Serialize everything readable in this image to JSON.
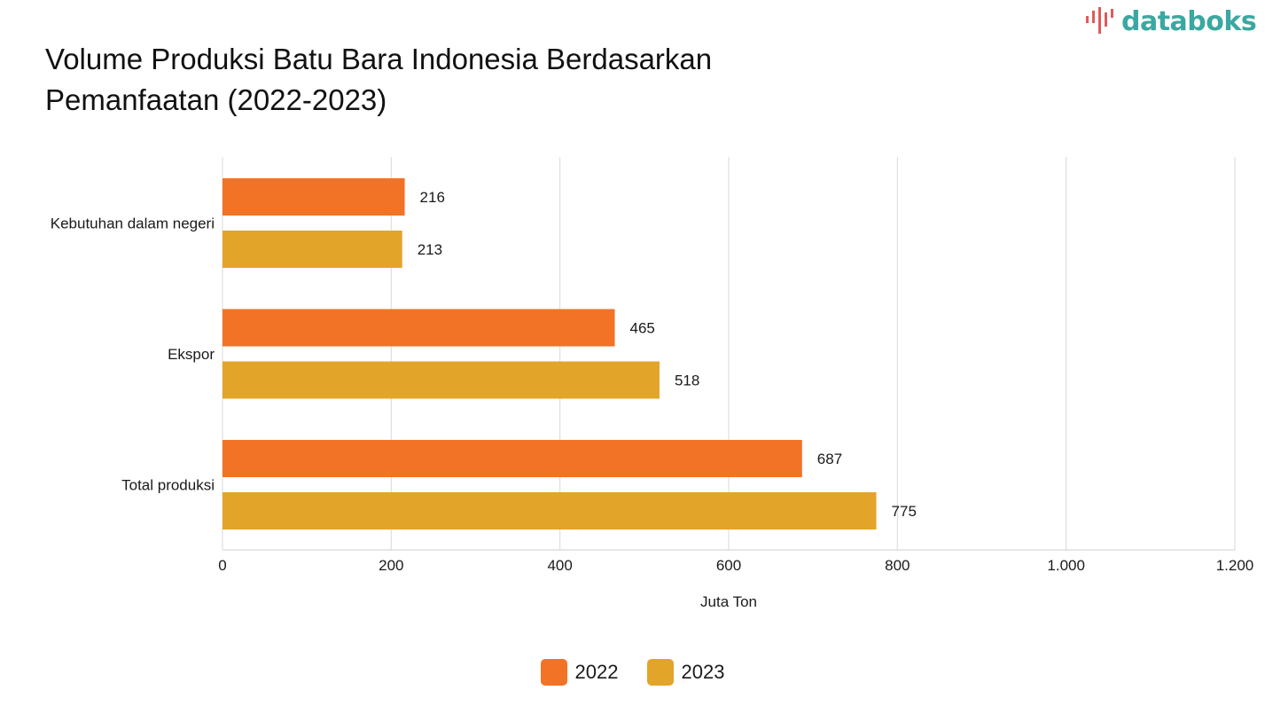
{
  "header": {
    "title_line1": "Volume Produksi Batu Bara Indonesia Berdasarkan",
    "title_line2": "Pemanfaatan (2022-2023)",
    "brand": "databoks"
  },
  "colors": {
    "series_2022": "#f27226",
    "series_2023": "#e3a42a",
    "brand_bars": "#e05a5a",
    "brand_text": "#3aa8a0"
  },
  "chart_data": {
    "type": "bar",
    "orientation": "horizontal",
    "title": "Volume Produksi Batu Bara Indonesia Berdasarkan Pemanfaatan (2022-2023)",
    "categories": [
      "Kebutuhan dalam negeri",
      "Ekspor",
      "Total produksi"
    ],
    "series": [
      {
        "name": "2022",
        "values": [
          216,
          465,
          687
        ]
      },
      {
        "name": "2023",
        "values": [
          213,
          518,
          775
        ]
      }
    ],
    "xlabel": "Juta Ton",
    "ylabel": "",
    "xlim": [
      0,
      1200
    ],
    "xticks": [
      0,
      200,
      400,
      600,
      800,
      1000,
      1200
    ],
    "xtick_labels": [
      "0",
      "200",
      "400",
      "600",
      "800",
      "1.000",
      "1.200"
    ],
    "grid": true,
    "legend": "bottom-center"
  }
}
